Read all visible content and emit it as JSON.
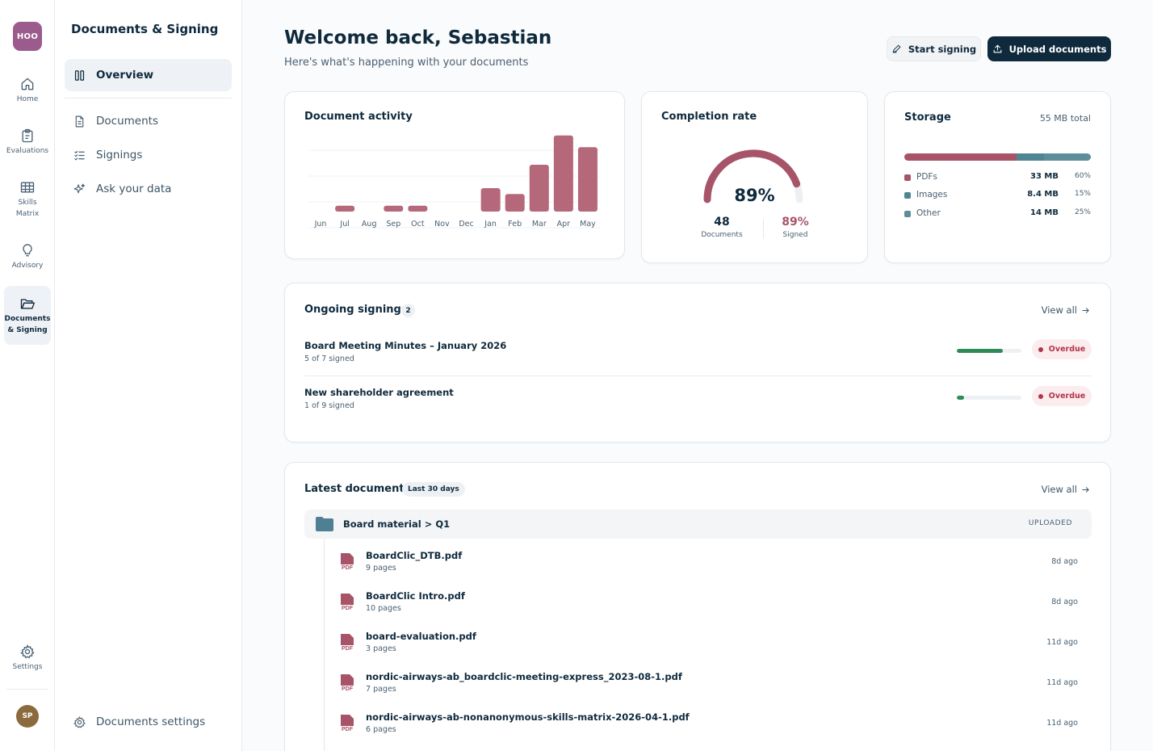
{
  "rail": {
    "logo": "HOO",
    "items": [
      {
        "label": "Home",
        "icon": "home-icon"
      },
      {
        "label": "Evaluations",
        "icon": "clipboard-icon"
      },
      {
        "label": "Skills\nMatrix",
        "icon": "grid-icon"
      },
      {
        "label": "Advisory",
        "icon": "lightbulb-icon"
      },
      {
        "label": "Documents\n& Signing",
        "icon": "folder-open-icon"
      },
      {
        "label": "Settings",
        "icon": "gear-icon"
      }
    ],
    "avatar": "SP"
  },
  "sidenav": {
    "title": "Documents & Signing",
    "items": [
      {
        "label": "Overview",
        "icon": "columns-icon"
      },
      {
        "label": "Documents",
        "icon": "file-icon"
      },
      {
        "label": "Signings",
        "icon": "checklist-icon"
      },
      {
        "label": "Ask your data",
        "icon": "sparkle-icon"
      }
    ],
    "footer": "Documents settings"
  },
  "header": {
    "title": "Welcome back, Sebastian",
    "subtitle": "Here's what's happening with your documents",
    "start_signing": "Start signing",
    "upload": "Upload documents"
  },
  "activity": {
    "title": "Document activity",
    "chart_data": {
      "type": "bar",
      "categories": [
        "Jun",
        "Jul",
        "Aug",
        "Sep",
        "Oct",
        "Nov",
        "Dec",
        "Jan",
        "Feb",
        "Mar",
        "Apr",
        "May"
      ],
      "values": [
        0,
        1,
        0,
        1,
        1,
        0,
        0,
        4,
        3,
        8,
        13,
        11
      ],
      "ylim": [
        0,
        16
      ],
      "grid": true,
      "color": "#b5687a"
    }
  },
  "completion": {
    "title": "Completion rate",
    "percent_label": "89%",
    "percent": 89,
    "documents_value": "48",
    "documents_label": "Documents",
    "signed_value": "89%",
    "signed_label": "Signed",
    "color": "#a85468"
  },
  "storage": {
    "title": "Storage",
    "total": "55 MB total",
    "segments": [
      {
        "name": "PDFs",
        "size": "33 MB",
        "pct": "60%",
        "fraction": 0.6,
        "color": "#a85468"
      },
      {
        "name": "Images",
        "size": "8.4 MB",
        "pct": "15%",
        "fraction": 0.15,
        "color": "#4f8493"
      },
      {
        "name": "Other",
        "size": "14 MB",
        "pct": "25%",
        "fraction": 0.25,
        "color": "#5e8d9a"
      }
    ]
  },
  "ongoing": {
    "title": "Ongoing signings",
    "count": "2",
    "view_all": "View all",
    "rows": [
      {
        "name": "Board Meeting Minutes – January 2026",
        "sub": "5 of 7 signed",
        "progress": 0.714,
        "status": "Overdue"
      },
      {
        "name": "New shareholder agreement",
        "sub": "1 of 9 signed",
        "progress": 0.111,
        "status": "Overdue"
      }
    ]
  },
  "latest": {
    "title": "Latest documents",
    "range": "Last 30 days",
    "view_all": "View all",
    "folder": {
      "name": "Board material > Q1",
      "tag": "UPLOADED"
    },
    "docs": [
      {
        "name": "BoardClic_DTB.pdf",
        "sub": "9 pages",
        "age": "8d ago"
      },
      {
        "name": "BoardClic Intro.pdf",
        "sub": "10 pages",
        "age": "8d ago"
      },
      {
        "name": "board-evaluation.pdf",
        "sub": "3 pages",
        "age": "11d ago"
      },
      {
        "name": "nordic-airways-ab_boardclic-meeting-express_2023-08-1.pdf",
        "sub": "7 pages",
        "age": "11d ago"
      },
      {
        "name": "nordic-airways-ab-nonanonymous-skills-matrix-2026-04-1.pdf",
        "sub": "6 pages",
        "age": "11d ago"
      }
    ],
    "pdf_label": "PDF"
  }
}
